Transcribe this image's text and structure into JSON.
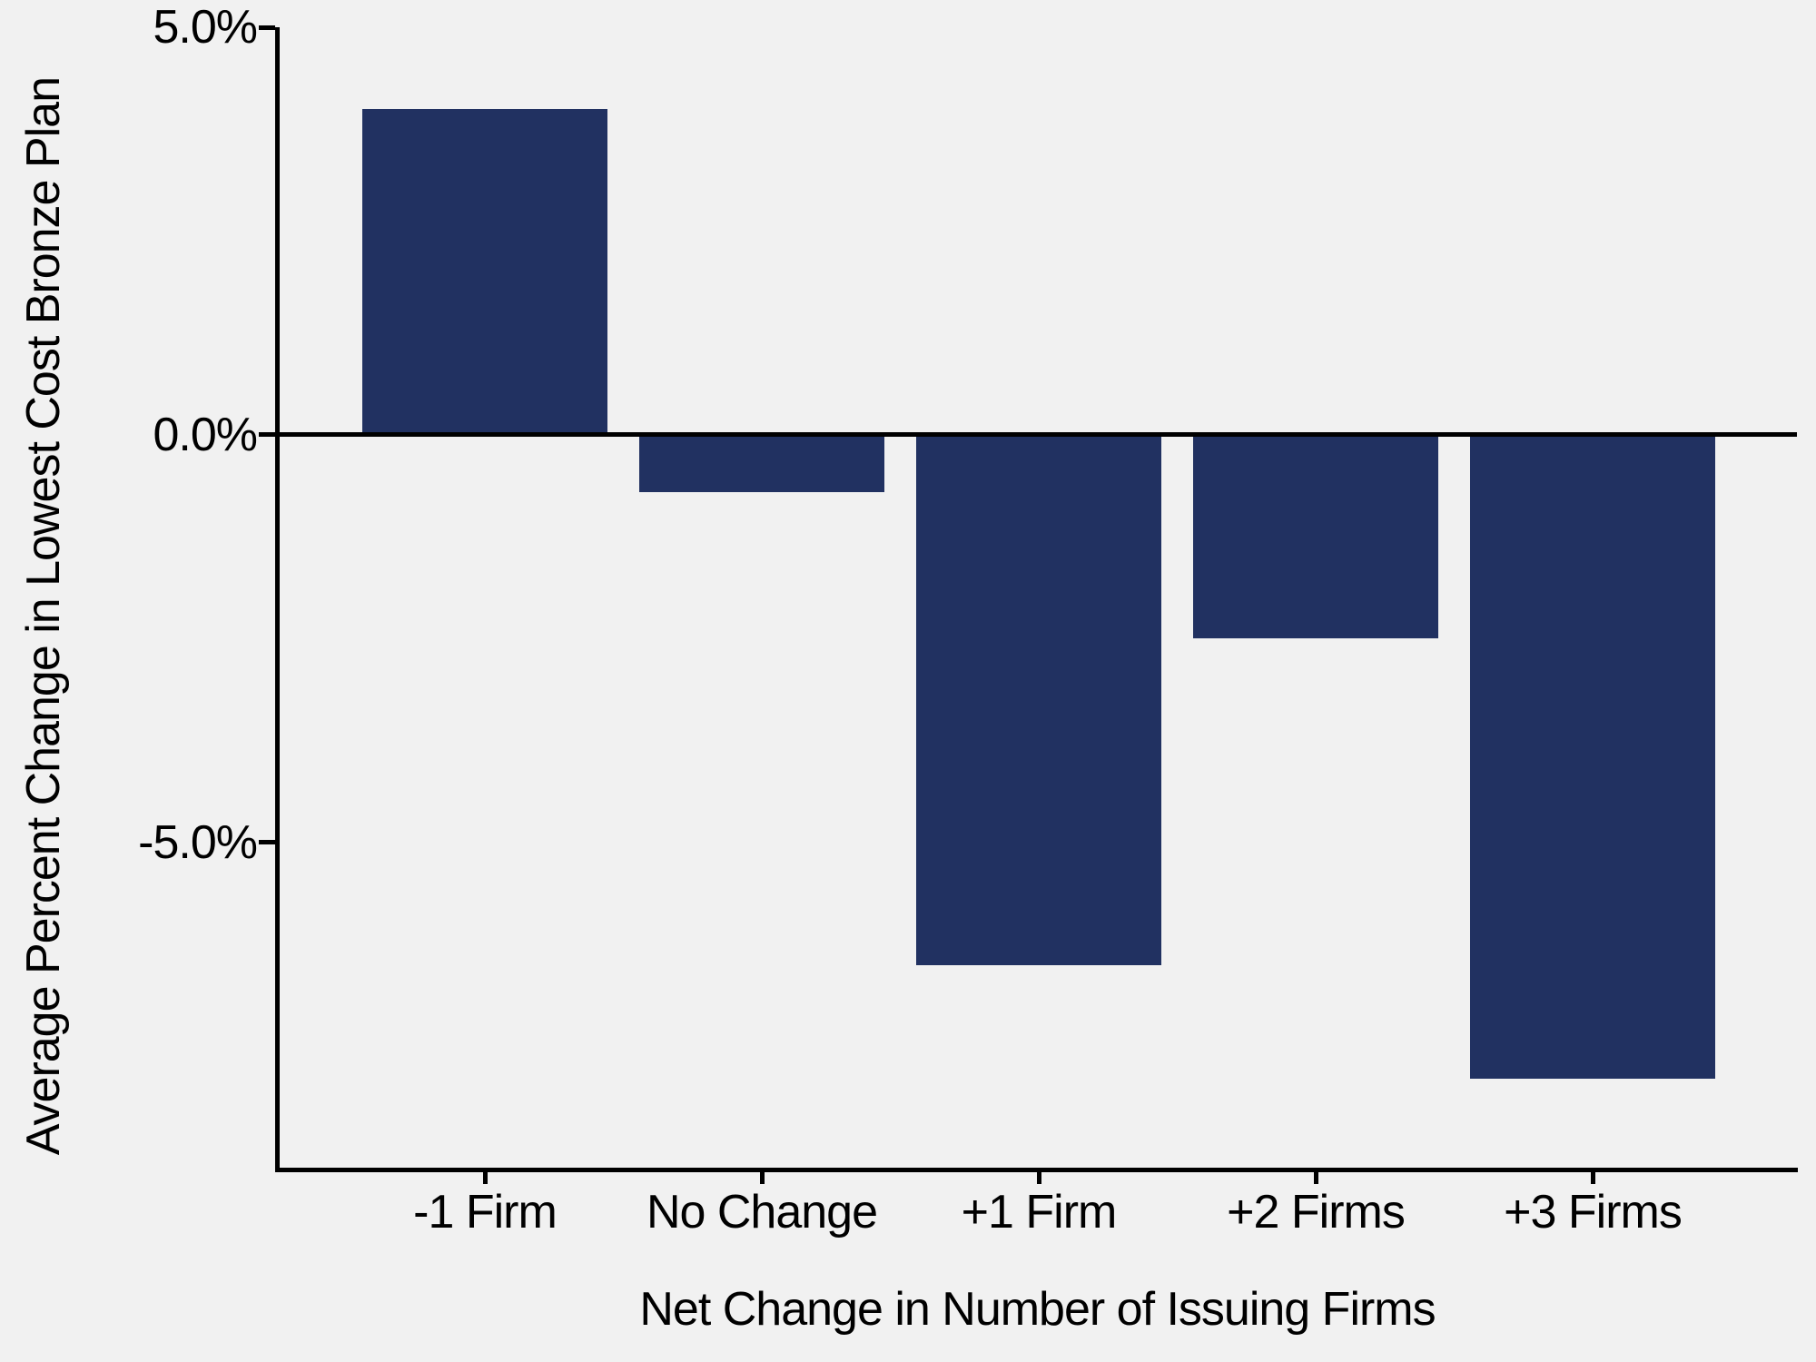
{
  "figure": {
    "background_color": "#F1F1F1",
    "axis_color": "#000000",
    "text_color": "#000000"
  },
  "chart_data": {
    "type": "bar",
    "title": "",
    "categories": [
      "-1 Firm",
      "No Change",
      "+1 Firm",
      "+2 Firms",
      "+3 Firms"
    ],
    "values": [
      4.0,
      -0.7,
      -6.5,
      -2.5,
      -7.9
    ],
    "unit": "percent",
    "xlabel": "Net Change in Number of Issuing Firms",
    "ylabel": "Average Percent Change in Lowest Cost Bronze Plan",
    "ylim": [
      -9,
      5
    ],
    "yticks": [
      {
        "value": 5,
        "label": "5.0%"
      },
      {
        "value": 0,
        "label": "0.0%"
      },
      {
        "value": -5,
        "label": "-5.0%"
      }
    ],
    "bar_color": "#213161",
    "grid": false,
    "legend": null,
    "zero_line": true
  }
}
